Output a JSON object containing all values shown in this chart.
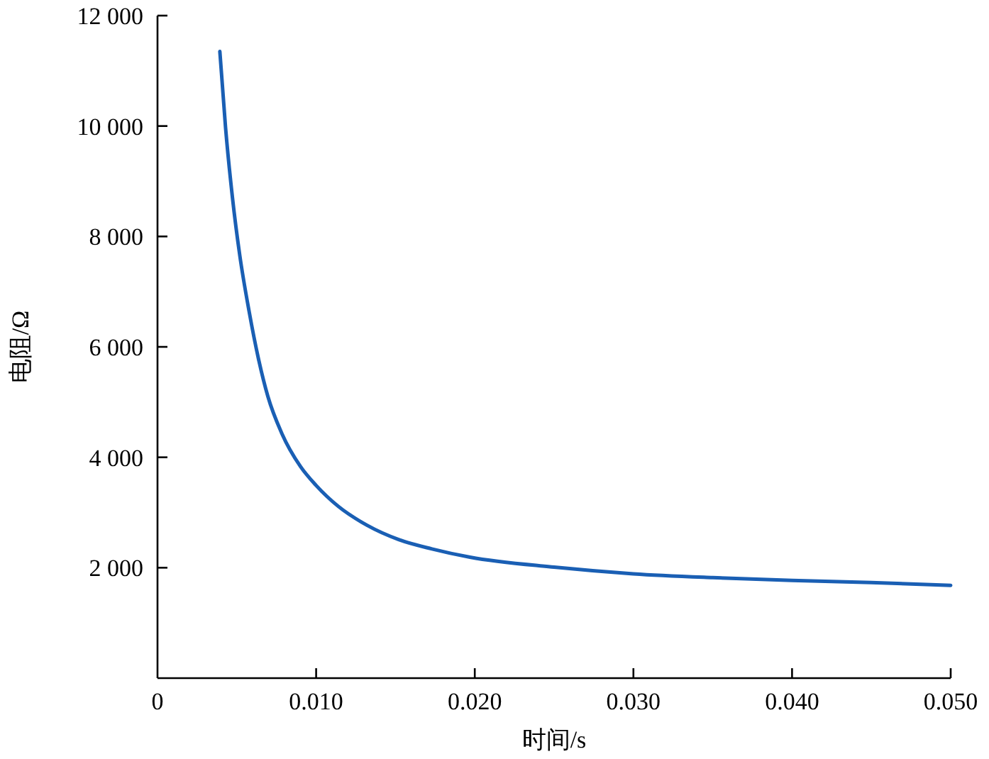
{
  "chart_data": {
    "type": "line",
    "xlabel": "时间/s",
    "ylabel": "电阻/Ω",
    "x": [
      0.00393,
      0.00429,
      0.00473,
      0.00518,
      0.00577,
      0.00636,
      0.00695,
      0.00784,
      0.00902,
      0.01,
      0.0114,
      0.0132,
      0.0152,
      0.0173,
      0.0197,
      0.025,
      0.03,
      0.035,
      0.04,
      0.045,
      0.05
    ],
    "series": [
      {
        "color": "#1a5fb4",
        "values": [
          11350,
          9970,
          8690,
          7670,
          6650,
          5790,
          5110,
          4430,
          3830,
          3490,
          3110,
          2770,
          2510,
          2340,
          2190,
          2010,
          1890,
          1820,
          1770,
          1730,
          1680
        ]
      }
    ],
    "xlim": [
      0,
      0.05
    ],
    "ylim": [
      0,
      12000
    ],
    "xticks": [
      {
        "value": 0,
        "label": "0"
      },
      {
        "value": 0.01,
        "label": "0.010"
      },
      {
        "value": 0.02,
        "label": "0.020"
      },
      {
        "value": 0.03,
        "label": "0.030"
      },
      {
        "value": 0.04,
        "label": "0.040"
      },
      {
        "value": 0.05,
        "label": "0.050"
      }
    ],
    "yticks": [
      {
        "value": 2000,
        "label": "2 000"
      },
      {
        "value": 4000,
        "label": "4 000"
      },
      {
        "value": 6000,
        "label": "6 000"
      },
      {
        "value": 8000,
        "label": "8 000"
      },
      {
        "value": 10000,
        "label": "10 000"
      },
      {
        "value": 12000,
        "label": "12 000"
      }
    ],
    "grid": false,
    "marker": "none",
    "line_style": "solid"
  }
}
